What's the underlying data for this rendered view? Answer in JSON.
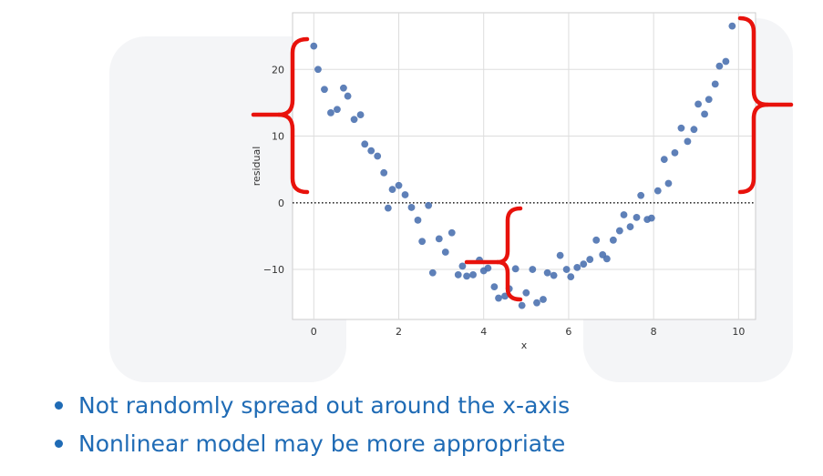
{
  "chart_data": {
    "type": "scatter",
    "xlabel": "x",
    "ylabel": "residual",
    "xlim": [
      -0.5,
      10.4
    ],
    "ylim": [
      -17.5,
      28.5
    ],
    "xticks": [
      "0",
      "2",
      "4",
      "6",
      "8",
      "10"
    ],
    "xtick_values": [
      0,
      2,
      4,
      6,
      8,
      10
    ],
    "yticks": [
      "20",
      "10",
      "0",
      "−10"
    ],
    "ytick_values": [
      20,
      10,
      0,
      -10
    ],
    "grid": true,
    "reference_line": {
      "y": 0,
      "style": "dotted"
    },
    "point_color": "#4c72b0",
    "annotation_color": "#e8120c",
    "points": [
      [
        0.0,
        23.5
      ],
      [
        0.1,
        20.0
      ],
      [
        0.25,
        17.0
      ],
      [
        0.4,
        13.5
      ],
      [
        0.55,
        14.0
      ],
      [
        0.7,
        17.2
      ],
      [
        0.8,
        16.0
      ],
      [
        0.95,
        12.5
      ],
      [
        1.1,
        13.2
      ],
      [
        1.2,
        8.8
      ],
      [
        1.35,
        7.8
      ],
      [
        1.5,
        7.0
      ],
      [
        1.65,
        4.5
      ],
      [
        1.75,
        -0.8
      ],
      [
        1.85,
        2.0
      ],
      [
        2.0,
        2.6
      ],
      [
        2.15,
        1.2
      ],
      [
        2.3,
        -0.7
      ],
      [
        2.45,
        -2.6
      ],
      [
        2.55,
        -5.8
      ],
      [
        2.7,
        -0.4
      ],
      [
        2.8,
        -10.5
      ],
      [
        2.95,
        -5.4
      ],
      [
        3.1,
        -7.4
      ],
      [
        3.25,
        -4.5
      ],
      [
        3.4,
        -10.8
      ],
      [
        3.5,
        -9.5
      ],
      [
        3.6,
        -11.0
      ],
      [
        3.75,
        -10.8
      ],
      [
        3.9,
        -8.6
      ],
      [
        4.0,
        -10.2
      ],
      [
        4.1,
        -9.8
      ],
      [
        4.25,
        -12.6
      ],
      [
        4.35,
        -14.3
      ],
      [
        4.5,
        -14.0
      ],
      [
        4.6,
        -12.9
      ],
      [
        4.75,
        -9.9
      ],
      [
        4.9,
        -15.4
      ],
      [
        5.0,
        -13.5
      ],
      [
        5.15,
        -10.0
      ],
      [
        5.25,
        -15.0
      ],
      [
        5.4,
        -14.5
      ],
      [
        5.5,
        -10.5
      ],
      [
        5.65,
        -10.9
      ],
      [
        5.8,
        -7.9
      ],
      [
        5.95,
        -10.0
      ],
      [
        6.05,
        -11.1
      ],
      [
        6.2,
        -9.7
      ],
      [
        6.35,
        -9.2
      ],
      [
        6.5,
        -8.5
      ],
      [
        6.65,
        -5.6
      ],
      [
        6.8,
        -7.8
      ],
      [
        6.9,
        -8.4
      ],
      [
        7.05,
        -5.6
      ],
      [
        7.2,
        -4.2
      ],
      [
        7.3,
        -1.8
      ],
      [
        7.45,
        -3.6
      ],
      [
        7.6,
        -2.2
      ],
      [
        7.7,
        1.1
      ],
      [
        7.85,
        -2.5
      ],
      [
        7.95,
        -2.3
      ],
      [
        8.1,
        1.8
      ],
      [
        8.25,
        6.5
      ],
      [
        8.35,
        2.9
      ],
      [
        8.5,
        7.5
      ],
      [
        8.65,
        11.2
      ],
      [
        8.8,
        9.2
      ],
      [
        8.95,
        11.0
      ],
      [
        9.05,
        14.8
      ],
      [
        9.2,
        13.3
      ],
      [
        9.3,
        15.5
      ],
      [
        9.45,
        17.8
      ],
      [
        9.55,
        20.5
      ],
      [
        9.7,
        21.2
      ],
      [
        9.85,
        26.5
      ]
    ]
  },
  "bullets": [
    "Not randomly spread out around the x-axis",
    "Nonlinear model may be more appropriate"
  ]
}
